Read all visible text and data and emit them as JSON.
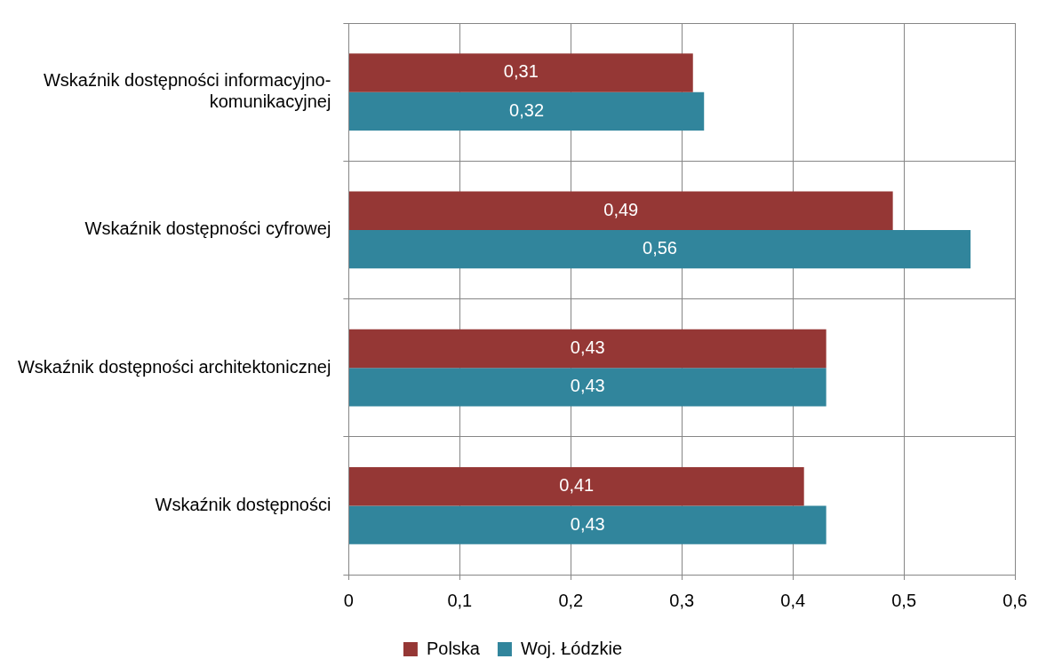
{
  "chart_data": {
    "type": "bar",
    "orientation": "horizontal",
    "categories": [
      "Wskaźnik dostępności informacyjno-komunikacyjnej",
      "Wskaźnik dostępności cyfrowej",
      "Wskaźnik dostępności architektonicznej",
      "Wskaźnik dostępności"
    ],
    "series": [
      {
        "name": "Polska",
        "color": "#953735",
        "values": [
          0.31,
          0.49,
          0.43,
          0.41
        ],
        "value_labels": [
          "0,31",
          "0,49",
          "0,43",
          "0,41"
        ]
      },
      {
        "name": "Woj. Łódzkie",
        "color": "#31859c",
        "values": [
          0.32,
          0.56,
          0.43,
          0.43
        ],
        "value_labels": [
          "0,32",
          "0,56",
          "0,43",
          "0,43"
        ]
      }
    ],
    "xlim": [
      0,
      0.6
    ],
    "xticks": [
      0,
      {
        "value": 0.1,
        "label": "0,1"
      },
      {
        "value": 0.2,
        "label": "0,2"
      },
      {
        "value": 0.3,
        "label": "0,3"
      },
      {
        "value": 0.4,
        "label": "0,4"
      },
      {
        "value": 0.5,
        "label": "0,5"
      },
      {
        "value": 0.6,
        "label": "0,6"
      }
    ],
    "grid": true,
    "legend": "bottom"
  }
}
